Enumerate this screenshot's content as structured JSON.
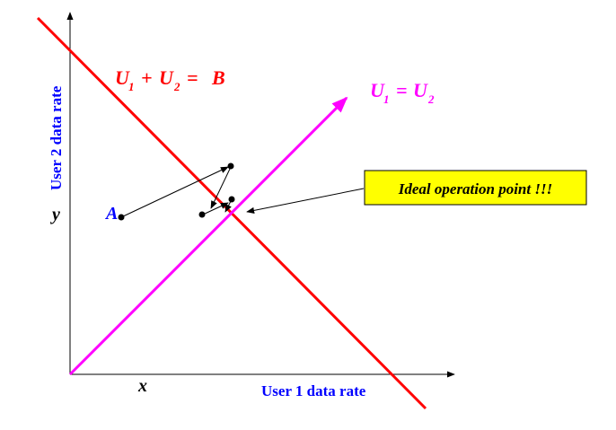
{
  "colors": {
    "axis": "#000000",
    "budget_line": "#ff0000",
    "fairness_line": "#ff00ff",
    "label_blue": "#0000ff",
    "callout_fill": "#ffff00",
    "callout_border": "#000000"
  },
  "labels": {
    "budget_line_u1": "U",
    "budget_line_sub1": "1",
    "budget_line_plus": "+",
    "budget_line_u2": "U",
    "budget_line_sub2": "2",
    "budget_line_eq": "=",
    "budget_line_b": "B",
    "fair_u1": "U",
    "fair_sub1": "1",
    "fair_eq": "=",
    "fair_u2": "U",
    "fair_sub2": "2",
    "y_axis": "User 2 data rate",
    "x_axis": "User 1 data rate",
    "x_tick": "x",
    "y_tick": "y",
    "start_point": "A",
    "callout": "Ideal operation point !!!"
  }
}
